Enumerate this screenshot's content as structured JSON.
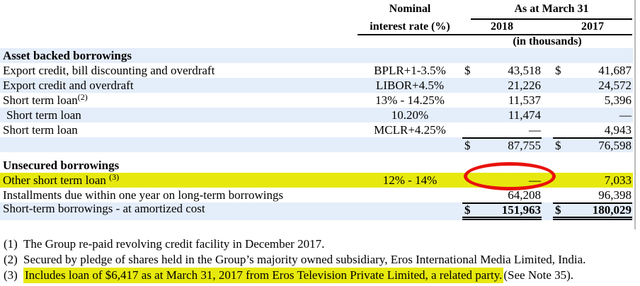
{
  "colors": {
    "row_blue": "#e4edfa",
    "highlight_yellow": "#e7e90e",
    "annotation_red": "#e8120d",
    "page_edge_line": "#bababa"
  },
  "table": {
    "header": {
      "nominal_line1": "Nominal",
      "nominal_line2": "interest rate (%)",
      "as_at_march_31": "As at March 31",
      "year_2018": "2018",
      "year_2017": "2017",
      "units": "(in thousands)"
    },
    "rows": [
      {
        "desc": "Asset backed borrowings"
      },
      {
        "desc": "Export credit, bill discounting and overdraft",
        "rate": "BPLR+1-3.5%",
        "cur_2018": "$",
        "val_2018": "43,518",
        "cur_2017": "$",
        "val_2017": "41,687"
      },
      {
        "desc": "Export credit and overdraft",
        "rate": "LIBOR+4.5%",
        "val_2018": "21,226",
        "val_2017": "24,572"
      },
      {
        "desc": "Short term loan",
        "sup": "(2)",
        "rate": "13% - 14.25%",
        "val_2018": "11,537",
        "val_2017": "5,396"
      },
      {
        "desc": "Short term loan",
        "rate": "10.20%",
        "val_2018": "11,474",
        "val_2017": "—"
      },
      {
        "desc": "Short term loan",
        "rate": "MCLR+4.25%",
        "val_2018": "—",
        "val_2017": "4,943"
      },
      {
        "cur_2018": "$",
        "val_2018": "87,755",
        "cur_2017": "$",
        "val_2017": "76,598"
      },
      {
        "desc": "Unsecured borrowings"
      },
      {
        "desc": "Other short term loan ",
        "sup": "(3)",
        "rate": "12% - 14%",
        "val_2018": "—",
        "val_2017": "7,033"
      },
      {
        "desc": "Installments due within one year on long-term borrowings",
        "val_2018": "64,208",
        "val_2017": "96,398"
      },
      {
        "desc": "Short-term borrowings - at amortized cost",
        "cur_2018": "$",
        "val_2018": "151,963",
        "cur_2017": "$",
        "val_2017": "180,029"
      }
    ]
  },
  "footnotes": [
    {
      "num": "(1)",
      "text": "The Group re-paid revolving credit facility in December 2017."
    },
    {
      "num": "(2)",
      "text": "Secured by pledge of shares held in the Group’s majority owned subsidiary, Eros International Media Limited, India."
    },
    {
      "num": "(3)",
      "text_highlighted": "Includes loan of $6,417 as at March 31, 2017 from Eros Television Private Limited, a related party.",
      "text_tail": " (See Note 35)."
    }
  ]
}
